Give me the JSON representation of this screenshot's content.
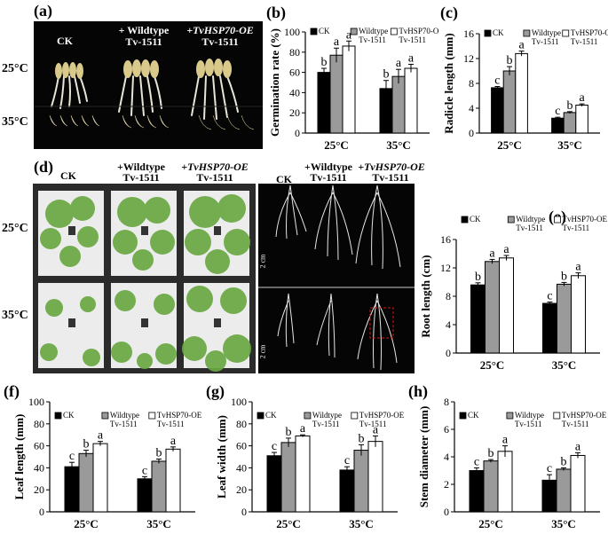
{
  "panels": {
    "a": {
      "letter": "(a)",
      "labels": [
        "CK",
        "+ Wildtype",
        "Tv-1511",
        "+TvHSP70-OE",
        "Tv-1511"
      ],
      "temps": [
        "25°C",
        "35°C"
      ]
    },
    "d": {
      "letter": "(d)",
      "labels": [
        "CK",
        "+Wildtype",
        "Tv-1511",
        "+TvHSP70-OE",
        "Tv-1511"
      ],
      "temps": [
        "25°C",
        "35°C"
      ],
      "root_labels": [
        "CK",
        "+Wildtype",
        "Tv-1511",
        "+TvHSP70-OE",
        "Tv-1511"
      ],
      "scale": "2 cm"
    }
  },
  "chart_data": [
    {
      "id": "b",
      "letter": "(b)",
      "type": "bar",
      "ylabel": "Germination rate (%)",
      "ylim": [
        0,
        100
      ],
      "yticks": [
        0,
        20,
        40,
        60,
        80,
        100
      ],
      "categories": [
        "25°C",
        "35°C"
      ],
      "legend": [
        "CK",
        "Wildtype",
        "Tv-1511",
        "TvHSP70-OE",
        "Tv-1511"
      ],
      "series": [
        {
          "name": "CK",
          "values": [
            60,
            44
          ],
          "errors": [
            4,
            8
          ],
          "letters": [
            "b",
            "b"
          ],
          "color": "#000000"
        },
        {
          "name": "Wildtype Tv-1511",
          "values": [
            77,
            56
          ],
          "errors": [
            7,
            7
          ],
          "letters": [
            "a",
            "a"
          ],
          "color": "#9a9a9a"
        },
        {
          "name": "TvHSP70-OE Tv-1511",
          "values": [
            86,
            64
          ],
          "errors": [
            5,
            4
          ],
          "letters": [
            "a",
            "a"
          ],
          "color": "#ffffff"
        }
      ]
    },
    {
      "id": "c",
      "letter": "(c)",
      "type": "bar",
      "ylabel": "Radicle length (mm)",
      "ylim": [
        0,
        16
      ],
      "yticks": [
        0,
        4,
        8,
        12,
        16
      ],
      "categories": [
        "25°C",
        "35°C"
      ],
      "legend": [
        "CK",
        "Wildtype",
        "Tv-1511",
        "TvHSP70-OE",
        "Tv-1511"
      ],
      "series": [
        {
          "name": "CK",
          "values": [
            7.3,
            2.4
          ],
          "errors": [
            0.2,
            0.15
          ],
          "letters": [
            "c",
            "c"
          ],
          "color": "#000000"
        },
        {
          "name": "Wildtype Tv-1511",
          "values": [
            10,
            3.3
          ],
          "errors": [
            0.7,
            0.15
          ],
          "letters": [
            "b",
            "b"
          ],
          "color": "#9a9a9a"
        },
        {
          "name": "TvHSP70-OE Tv-1511",
          "values": [
            12.8,
            4.5
          ],
          "errors": [
            0.4,
            0.2
          ],
          "letters": [
            "a",
            "a"
          ],
          "color": "#ffffff"
        }
      ]
    },
    {
      "id": "e",
      "letter": "(e)",
      "type": "bar",
      "ylabel": "Root length (cm)",
      "ylim": [
        0,
        16
      ],
      "yticks": [
        0,
        4,
        8,
        12,
        16
      ],
      "categories": [
        "25°C",
        "35°C"
      ],
      "legend": [
        "CK",
        "Wildtype",
        "Tv-1511",
        "TvHSP70-OE",
        "Tv-1511"
      ],
      "series": [
        {
          "name": "CK",
          "values": [
            9.6,
            7.0
          ],
          "errors": [
            0.3,
            0.2
          ],
          "letters": [
            "b",
            "c"
          ],
          "color": "#000000"
        },
        {
          "name": "Wildtype Tv-1511",
          "values": [
            12.9,
            9.7
          ],
          "errors": [
            0.3,
            0.25
          ],
          "letters": [
            "a",
            "b"
          ],
          "color": "#9a9a9a"
        },
        {
          "name": "TvHSP70-OE Tv-1511",
          "values": [
            13.4,
            10.9
          ],
          "errors": [
            0.35,
            0.4
          ],
          "letters": [
            "a",
            "a"
          ],
          "color": "#ffffff"
        }
      ]
    },
    {
      "id": "f",
      "letter": "(f)",
      "type": "bar",
      "ylabel": "Leaf length (mm)",
      "ylim": [
        0,
        100
      ],
      "yticks": [
        0,
        20,
        40,
        60,
        80,
        100
      ],
      "categories": [
        "25°C",
        "35°C"
      ],
      "legend": [
        "CK",
        "Wildtype",
        "Tv-1511",
        "TvHSP70-OE",
        "Tv-1511"
      ],
      "series": [
        {
          "name": "CK",
          "values": [
            41,
            30
          ],
          "errors": [
            4,
            2
          ],
          "letters": [
            "c",
            "c"
          ],
          "color": "#000000"
        },
        {
          "name": "Wildtype Tv-1511",
          "values": [
            53,
            46
          ],
          "errors": [
            3,
            2
          ],
          "letters": [
            "b",
            "b"
          ],
          "color": "#9a9a9a"
        },
        {
          "name": "TvHSP70-OE Tv-1511",
          "values": [
            62,
            57
          ],
          "errors": [
            2,
            2
          ],
          "letters": [
            "a",
            "a"
          ],
          "color": "#ffffff"
        }
      ]
    },
    {
      "id": "g",
      "letter": "(g)",
      "type": "bar",
      "ylabel": "Leaf width (mm)",
      "ylim": [
        0,
        100
      ],
      "yticks": [
        0,
        20,
        40,
        60,
        80,
        100
      ],
      "categories": [
        "25°C",
        "35°C"
      ],
      "legend": [
        "CK",
        "Wildtype",
        "Tv-1511",
        "TvHSP70-OE",
        "Tv-1511"
      ],
      "series": [
        {
          "name": "CK",
          "values": [
            51,
            38
          ],
          "errors": [
            3,
            3
          ],
          "letters": [
            "c",
            "c"
          ],
          "color": "#000000"
        },
        {
          "name": "Wildtype Tv-1511",
          "values": [
            63,
            56
          ],
          "errors": [
            4,
            5
          ],
          "letters": [
            "b",
            "b"
          ],
          "color": "#9a9a9a"
        },
        {
          "name": "TvHSP70-OE Tv-1511",
          "values": [
            69,
            64
          ],
          "errors": [
            1,
            5
          ],
          "letters": [
            "a",
            "a"
          ],
          "color": "#ffffff"
        }
      ]
    },
    {
      "id": "h",
      "letter": "(h)",
      "type": "bar",
      "ylabel": "Stem diameter (mm)",
      "ylim": [
        0,
        8
      ],
      "yticks": [
        0,
        2,
        4,
        6,
        8
      ],
      "categories": [
        "25°C",
        "35°C"
      ],
      "legend": [
        "CK",
        "Wildtype",
        "Tv-1511",
        "TvHSP70-OE",
        "Tv-1511"
      ],
      "series": [
        {
          "name": "CK",
          "values": [
            3.0,
            2.3
          ],
          "errors": [
            0.2,
            0.4
          ],
          "letters": [
            "c",
            "c"
          ],
          "color": "#000000"
        },
        {
          "name": "Wildtype Tv-1511",
          "values": [
            3.7,
            3.1
          ],
          "errors": [
            0.1,
            0.1
          ],
          "letters": [
            "b",
            "b"
          ],
          "color": "#9a9a9a"
        },
        {
          "name": "TvHSP70-OE Tv-1511",
          "values": [
            4.4,
            4.1
          ],
          "errors": [
            0.4,
            0.2
          ],
          "letters": [
            "a",
            "a"
          ],
          "color": "#ffffff"
        }
      ]
    }
  ]
}
